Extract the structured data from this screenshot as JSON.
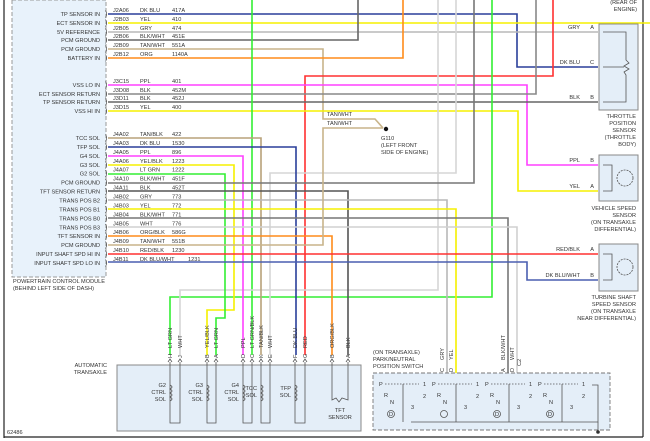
{
  "figure_id": "62486",
  "pcm": {
    "title_lines": [
      "POWERTRAIN CONTROL MODULE",
      "(BEHIND LEFT SIDE OF DASH)"
    ],
    "pins": [
      {
        "function": "TP SENSOR IN",
        "pin": "J2A06",
        "color": "DK BLU",
        "circuit": "417A",
        "hex": "#2a3f9a"
      },
      {
        "function": "ECT SENSOR IN",
        "pin": "J2B03",
        "color": "YEL",
        "circuit": "410",
        "hex": "#f5f000"
      },
      {
        "function": "5V REFERENCE",
        "pin": "J2B05",
        "color": "GRY",
        "circuit": "474",
        "hex": "#b0b0b0"
      },
      {
        "function": "PCM GROUND",
        "pin": "J2B06",
        "color": "BLK/WHT",
        "circuit": "451E",
        "hex": "#666666"
      },
      {
        "function": "PCM GROUND",
        "pin": "J2B09",
        "color": "TAN/WHT",
        "circuit": "551A",
        "hex": "#c8b48a"
      },
      {
        "function": "BATTERY IN",
        "pin": "J2B12",
        "color": "ORG",
        "circuit": "1140A",
        "hex": "#ff8c1a"
      },
      {
        "function": "VSS LO IN",
        "pin": "J3C15",
        "color": "PPL",
        "circuit": "401",
        "hex": "#ff40ff"
      },
      {
        "function": "ECT SENSOR RETURN",
        "pin": "J3D08",
        "color": "BLK",
        "circuit": "452M",
        "hex": "#777777"
      },
      {
        "function": "TP SENSOR RETURN",
        "pin": "J3D11",
        "color": "BLK",
        "circuit": "452J",
        "hex": "#666666"
      },
      {
        "function": "VSS HI IN",
        "pin": "J3D15",
        "color": "YEL",
        "circuit": "400",
        "hex": "#f5f000"
      },
      {
        "function": "TCC SOL",
        "pin": "J4A02",
        "color": "TAN/BLK",
        "circuit": "422",
        "hex": "#b8a27a"
      },
      {
        "function": "TFP SOL",
        "pin": "J4A03",
        "color": "DK BLU",
        "circuit": "1530",
        "hex": "#2a3f9a"
      },
      {
        "function": "G4 SOL",
        "pin": "J4A05",
        "color": "PPL",
        "circuit": "896",
        "hex": "#ff40ff"
      },
      {
        "function": "G3 SOL",
        "pin": "J4A06",
        "color": "YEL/BLK",
        "circuit": "1223",
        "hex": "#f5f000"
      },
      {
        "function": "G2 SOL",
        "pin": "J4A07",
        "color": "LT GRN",
        "circuit": "1222",
        "hex": "#33ee33"
      },
      {
        "function": "PCM GROUND",
        "pin": "J4A10",
        "color": "BLK/WHT",
        "circuit": "451F",
        "hex": "#777777"
      },
      {
        "function": "TFT SENSOR RETURN",
        "pin": "J4A11",
        "color": "BLK",
        "circuit": "452T",
        "hex": "#555555"
      },
      {
        "function": "TRANS POS B2",
        "pin": "J4B02",
        "color": "GRY",
        "circuit": "773",
        "hex": "#b0b0b0"
      },
      {
        "function": "TRANS POS B1",
        "pin": "J4B03",
        "color": "YEL",
        "circuit": "772",
        "hex": "#f5f000"
      },
      {
        "function": "TRANS POS B0",
        "pin": "J4B04",
        "color": "BLK/WHT",
        "circuit": "771",
        "hex": "#777777"
      },
      {
        "function": "TRANS POS B3",
        "pin": "J4B05",
        "color": "WHT",
        "circuit": "776",
        "hex": "#d0d0d0"
      },
      {
        "function": "TFT SENSOR IN",
        "pin": "J4B06",
        "color": "ORG/BLK",
        "circuit": "586G",
        "hex": "#ff8c1a"
      },
      {
        "function": "PCM GROUND",
        "pin": "J4B09",
        "color": "TAN/WHT",
        "circuit": "551B",
        "hex": "#c8b48a"
      },
      {
        "function": "INPUT SHAFT SPD HI IN",
        "pin": "J4B10",
        "color": "RED/BLK",
        "circuit": "1230",
        "hex": "#ff3030"
      },
      {
        "function": "INPUT SHAFT SPD LO IN",
        "pin": "J4B11",
        "color": "DK BLU/WHT",
        "circuit": "1231",
        "hex": "#4a5fb0"
      }
    ]
  },
  "ground": {
    "wire_labels": [
      "TAN/WHT",
      "TAN/WHT"
    ],
    "lines": [
      "G110",
      "(LEFT FRONT",
      "SIDE OF ENGINE)"
    ]
  },
  "ect_note_lines": [
    "(REAR OF",
    "ENGINE)"
  ],
  "tps": {
    "pins": [
      {
        "color": "GRY",
        "pin": "A"
      },
      {
        "color": "DK BLU",
        "pin": "C"
      },
      {
        "color": "BLK",
        "pin": "B"
      }
    ],
    "lines": [
      "THROTTLE",
      "POSITION",
      "SENSOR",
      "(THROTTLE",
      "BODY)"
    ]
  },
  "vss": {
    "pins": [
      {
        "color": "PPL",
        "pin": "B"
      },
      {
        "color": "YEL",
        "pin": "A"
      }
    ],
    "lines": [
      "VEHICLE SPEED",
      "SENSOR",
      "(ON TRANSAXLE",
      "DIFFERENTIAL)"
    ]
  },
  "tss": {
    "pins": [
      {
        "color": "RED/BLK",
        "pin": "A"
      },
      {
        "color": "DK BLU/WHT",
        "pin": "B"
      }
    ],
    "lines": [
      "TURBINE SHAFT",
      "SPEED SENSOR",
      "(ON TRANSAXLE",
      "NEAR DIFFERENTIAL)"
    ]
  },
  "transaxle": {
    "title_lines": [
      "AUTOMATIC",
      "TRANSAXLE"
    ],
    "pins": [
      {
        "pin": "H",
        "color": "LT GRN"
      },
      {
        "pin": "J",
        "color": "WHT"
      },
      {
        "pin": "B",
        "color": "YEL/BLK"
      },
      {
        "pin": "A",
        "color": "LT GRN"
      },
      {
        "pin": "D",
        "color": "PPL"
      },
      {
        "pin": "C",
        "color": "LT GRN/BLK"
      },
      {
        "pin": "K",
        "color": "TAN/BLK"
      },
      {
        "pin": "E",
        "color": "WHT"
      },
      {
        "pin": "F",
        "color": "DK BLU"
      },
      {
        "pin": "G",
        "color": "RED"
      },
      {
        "pin": "B",
        "color": "ORG/BLK"
      },
      {
        "pin": "A",
        "color": "BLK"
      }
    ],
    "components": [
      [
        "G2",
        "CTRL",
        "SOL"
      ],
      [
        "G3",
        "CTRL",
        "SOL"
      ],
      [
        "G4",
        "CTRL",
        "SOL"
      ],
      [
        "TCC",
        "SOL"
      ],
      [
        "TFP",
        "SOL"
      ],
      [
        "TFT",
        "SENSOR"
      ]
    ]
  },
  "switch": {
    "title_lines": [
      "(ON TRANSAXLE)",
      "PARK/NEUTRAL",
      "POSITION SWITCH"
    ],
    "pins": [
      {
        "pin": "C",
        "color": "GRY"
      },
      {
        "pin": "D",
        "color": "YEL"
      },
      {
        "pin": "A",
        "color": "BLK/WHT"
      },
      {
        "pin": "D",
        "color": "WHT"
      }
    ],
    "connector": "C2",
    "positions": [
      "P",
      "R",
      "N",
      "D",
      "1",
      "2",
      "3"
    ]
  }
}
